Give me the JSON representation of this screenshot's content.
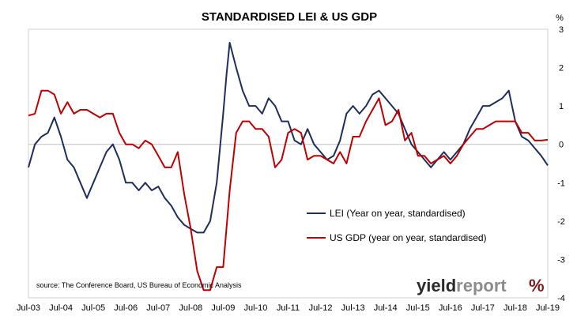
{
  "chart_data": {
    "type": "line",
    "title": "STANDARDISED LEI & US GDP",
    "y_unit_label": "%",
    "ylim": [
      -4,
      3
    ],
    "y_ticks": [
      3,
      2,
      1,
      0,
      -1,
      -2,
      -3,
      -4
    ],
    "xlim": [
      2003.5,
      2019.5
    ],
    "x_tick_labels": [
      "Jul-03",
      "Jul-04",
      "Jul-05",
      "Jul-06",
      "Jul-07",
      "Jul-08",
      "Jul-09",
      "Jul-10",
      "Jul-11",
      "Jul-12",
      "Jul-13",
      "Jul-14",
      "Jul-15",
      "Jul-16",
      "Jul-17",
      "Jul-18",
      "Jul-19"
    ],
    "legend_position": "right",
    "source_note": "source: The Conference Board, US Bureau of Economic Analysis",
    "logo": {
      "text_dark": "yield",
      "text_light": "report",
      "symbol": "%"
    },
    "series": [
      {
        "name": "LEI (Year on year, standardised)",
        "color": "#1f2d5c",
        "x": [
          2003.5,
          2003.7,
          2003.9,
          2004.1,
          2004.3,
          2004.5,
          2004.7,
          2004.9,
          2005.1,
          2005.3,
          2005.5,
          2005.7,
          2005.9,
          2006.1,
          2006.3,
          2006.5,
          2006.7,
          2006.9,
          2007.1,
          2007.3,
          2007.5,
          2007.7,
          2007.9,
          2008.1,
          2008.3,
          2008.5,
          2008.7,
          2008.9,
          2009.1,
          2009.3,
          2009.5,
          2009.6,
          2009.7,
          2009.9,
          2010.1,
          2010.3,
          2010.5,
          2010.7,
          2010.9,
          2011.1,
          2011.3,
          2011.5,
          2011.7,
          2011.9,
          2012.1,
          2012.3,
          2012.5,
          2012.7,
          2012.9,
          2013.1,
          2013.3,
          2013.5,
          2013.7,
          2013.9,
          2014.1,
          2014.3,
          2014.5,
          2014.7,
          2014.9,
          2015.1,
          2015.3,
          2015.5,
          2015.7,
          2015.9,
          2016.1,
          2016.3,
          2016.5,
          2016.7,
          2016.9,
          2017.1,
          2017.3,
          2017.5,
          2017.7,
          2017.9,
          2018.1,
          2018.3,
          2018.5,
          2018.7,
          2018.9,
          2019.1,
          2019.3,
          2019.5
        ],
        "values": [
          -0.6,
          0.0,
          0.2,
          0.3,
          0.7,
          0.2,
          -0.4,
          -0.6,
          -1.0,
          -1.4,
          -1.0,
          -0.6,
          -0.2,
          0.0,
          -0.4,
          -1.0,
          -1.0,
          -1.2,
          -1.0,
          -1.2,
          -1.1,
          -1.4,
          -1.6,
          -1.9,
          -2.1,
          -2.2,
          -2.3,
          -2.3,
          -2.0,
          -1.0,
          0.8,
          1.8,
          2.65,
          2.0,
          1.4,
          1.0,
          1.0,
          0.8,
          1.2,
          1.0,
          0.6,
          0.6,
          0.1,
          0.0,
          0.4,
          0.0,
          -0.2,
          -0.4,
          -0.3,
          0.1,
          0.8,
          1.0,
          0.8,
          1.0,
          1.3,
          1.4,
          1.2,
          1.0,
          0.8,
          0.4,
          0.0,
          -0.2,
          -0.4,
          -0.6,
          -0.4,
          -0.2,
          -0.4,
          -0.2,
          0.0,
          0.4,
          0.7,
          1.0,
          1.0,
          1.1,
          1.2,
          1.4,
          0.6,
          0.2,
          0.1,
          -0.1,
          -0.3,
          -0.55
        ]
      },
      {
        "name": "US GDP (year on year, standardised)",
        "color": "#c00000",
        "x": [
          2003.5,
          2003.7,
          2003.9,
          2004.1,
          2004.3,
          2004.5,
          2004.7,
          2004.9,
          2005.1,
          2005.3,
          2005.5,
          2005.7,
          2005.9,
          2006.1,
          2006.3,
          2006.5,
          2006.7,
          2006.9,
          2007.1,
          2007.3,
          2007.5,
          2007.7,
          2007.9,
          2008.1,
          2008.3,
          2008.5,
          2008.7,
          2008.9,
          2009.1,
          2009.3,
          2009.5,
          2009.7,
          2009.9,
          2010.1,
          2010.3,
          2010.5,
          2010.7,
          2010.9,
          2011.1,
          2011.3,
          2011.5,
          2011.7,
          2011.9,
          2012.1,
          2012.3,
          2012.5,
          2012.7,
          2012.9,
          2013.1,
          2013.3,
          2013.5,
          2013.7,
          2013.9,
          2014.1,
          2014.3,
          2014.5,
          2014.7,
          2014.9,
          2015.1,
          2015.3,
          2015.5,
          2015.7,
          2015.9,
          2016.1,
          2016.3,
          2016.5,
          2016.7,
          2016.9,
          2017.1,
          2017.3,
          2017.5,
          2017.7,
          2017.9,
          2018.1,
          2018.3,
          2018.5,
          2018.7,
          2018.9,
          2019.1,
          2019.3,
          2019.5
        ],
        "values": [
          0.75,
          0.8,
          1.4,
          1.4,
          1.3,
          0.8,
          1.1,
          0.8,
          0.9,
          0.9,
          0.8,
          0.7,
          0.8,
          0.8,
          0.3,
          0.0,
          0.0,
          -0.1,
          0.1,
          0.0,
          -0.3,
          -0.6,
          -0.6,
          -0.2,
          -1.3,
          -2.2,
          -3.3,
          -3.8,
          -3.8,
          -3.2,
          -3.2,
          -1.2,
          0.3,
          0.6,
          0.6,
          0.4,
          0.4,
          0.2,
          -0.6,
          -0.4,
          0.3,
          0.4,
          0.3,
          -0.4,
          -0.3,
          -0.3,
          -0.4,
          -0.5,
          -0.2,
          -0.5,
          0.2,
          0.2,
          0.6,
          0.9,
          1.2,
          0.5,
          0.6,
          0.9,
          0.1,
          0.3,
          -0.3,
          -0.3,
          -0.5,
          -0.4,
          -0.3,
          -0.5,
          -0.3,
          0.0,
          0.2,
          0.4,
          0.4,
          0.5,
          0.6,
          0.6,
          0.6,
          0.6,
          0.3,
          0.3,
          0.1,
          0.1,
          0.12
        ]
      }
    ]
  }
}
